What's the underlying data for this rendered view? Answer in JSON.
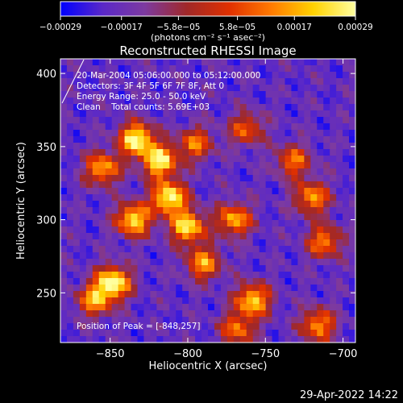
{
  "chart_data": {
    "type": "heatmap",
    "title": "Reconstructed RHESSI Image",
    "xlabel": "Heliocentric X (arcsec)",
    "ylabel": "Heliocentric Y (arcsec)",
    "xlim": [
      -882,
      -692
    ],
    "ylim": [
      216,
      410
    ],
    "x_ticks": [
      -850,
      -800,
      -750,
      -700
    ],
    "x_tick_labels": [
      "−850",
      "−800",
      "−750",
      "−700"
    ],
    "y_ticks": [
      250,
      300,
      350,
      400
    ],
    "y_tick_labels": [
      "250",
      "300",
      "350",
      "400"
    ],
    "colorbar": {
      "min": -0.00029,
      "max": 0.00029,
      "ticks": [
        -0.00029,
        -0.00017,
        -5.8e-05,
        5.8e-05,
        0.00017,
        0.00029
      ],
      "tick_labels": [
        "−0.00029",
        "−0.00017",
        "−5.8e−05",
        "5.8e−05",
        "0.00017",
        "0.00029"
      ],
      "unit_label": "(photons cm⁻² s⁻¹ asec⁻²)",
      "colormap": [
        "#0000ff",
        "#5a28c8",
        "#7d3aa0",
        "#a02828",
        "#e03000",
        "#ff7a00",
        "#ffd200",
        "#ffffa0"
      ]
    },
    "annotations": [
      "20-Mar-2004 05:06:00.000 to 05:12:00.000",
      "Detectors: 3F 4F 5F 6F 7F 8F, Att 0",
      "Energy Range: 25.0 - 50.0 keV",
      "Clean    Total counts: 5.69E+03",
      "Position of Peak = [-848,257]"
    ],
    "peak": [
      -848,
      257
    ],
    "hot_regions": [
      {
        "x": -833,
        "y": 355,
        "w": 1.0
      },
      {
        "x": -818,
        "y": 340,
        "w": 0.95
      },
      {
        "x": -812,
        "y": 315,
        "w": 1.0
      },
      {
        "x": -835,
        "y": 300,
        "w": 0.9
      },
      {
        "x": -855,
        "y": 335,
        "w": 0.75
      },
      {
        "x": -848,
        "y": 257,
        "w": 1.0
      },
      {
        "x": -860,
        "y": 245,
        "w": 0.7
      },
      {
        "x": -800,
        "y": 295,
        "w": 0.9
      },
      {
        "x": -790,
        "y": 270,
        "w": 0.7
      },
      {
        "x": -770,
        "y": 300,
        "w": 0.75
      },
      {
        "x": -758,
        "y": 245,
        "w": 0.85
      },
      {
        "x": -768,
        "y": 225,
        "w": 0.6
      },
      {
        "x": -732,
        "y": 340,
        "w": 0.6
      },
      {
        "x": -720,
        "y": 315,
        "w": 0.7
      },
      {
        "x": -712,
        "y": 285,
        "w": 0.65
      },
      {
        "x": -716,
        "y": 228,
        "w": 0.7
      },
      {
        "x": -795,
        "y": 352,
        "w": 0.6
      },
      {
        "x": -762,
        "y": 362,
        "w": 0.55
      }
    ]
  },
  "footer": {
    "timestamp": "29-Apr-2022 14:22"
  }
}
